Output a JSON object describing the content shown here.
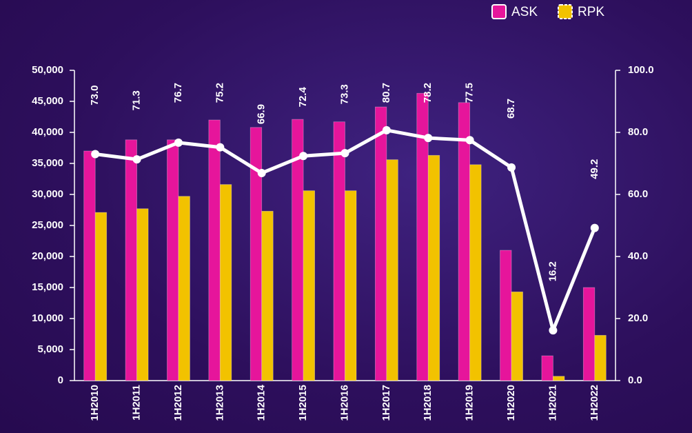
{
  "chart_data": {
    "type": "bar",
    "categories": [
      "1H2010",
      "1H2011",
      "1H2012",
      "1H2013",
      "1H2014",
      "1H2015",
      "1H2016",
      "1H2017",
      "1H2018",
      "1H2019",
      "1H2020",
      "1H2021",
      "1H2022"
    ],
    "series": [
      {
        "name": "ASK",
        "color": "#e6159b",
        "values": [
          37000,
          38800,
          38800,
          42000,
          40800,
          42100,
          41700,
          44100,
          46300,
          44800,
          21000,
          4000,
          15000
        ]
      },
      {
        "name": "RPK",
        "color": "#f2c200",
        "values": [
          27100,
          27700,
          29700,
          31600,
          27300,
          30600,
          30600,
          35600,
          36300,
          34800,
          14300,
          700,
          7300
        ]
      },
      {
        "type": "line",
        "axis": "y2",
        "color": "#ffffff",
        "values": [
          73.0,
          71.3,
          76.7,
          75.2,
          66.9,
          72.4,
          73.3,
          80.7,
          78.2,
          77.5,
          68.7,
          16.2,
          49.2
        ],
        "value_labels": [
          "73.0",
          "71.3",
          "76.7",
          "75.2",
          "66.9",
          "72.4",
          "73.3",
          "80.7",
          "78.2",
          "77.5",
          "68.7",
          "16.2",
          "49.2"
        ]
      }
    ],
    "ylim": [
      0,
      50000
    ],
    "yticks": [
      {
        "value": 0,
        "label": "0"
      },
      {
        "value": 5000,
        "label": "5,000"
      },
      {
        "value": 10000,
        "label": "10,000"
      },
      {
        "value": 15000,
        "label": "15,000"
      },
      {
        "value": 20000,
        "label": "20,000"
      },
      {
        "value": 25000,
        "label": "25,000"
      },
      {
        "value": 30000,
        "label": "30,000"
      },
      {
        "value": 35000,
        "label": "35,000"
      },
      {
        "value": 40000,
        "label": "40,000"
      },
      {
        "value": 45000,
        "label": "45,000"
      },
      {
        "value": 50000,
        "label": "50,000"
      }
    ],
    "y2lim": [
      0,
      100
    ],
    "y2ticks": [
      {
        "value": 0,
        "label": "0.0"
      },
      {
        "value": 20,
        "label": "20.0"
      },
      {
        "value": 40,
        "label": "40.0"
      },
      {
        "value": 60,
        "label": "60.0"
      },
      {
        "value": 80,
        "label": "80.0"
      },
      {
        "value": 100,
        "label": "100.0"
      }
    ],
    "legend": "top-right"
  }
}
